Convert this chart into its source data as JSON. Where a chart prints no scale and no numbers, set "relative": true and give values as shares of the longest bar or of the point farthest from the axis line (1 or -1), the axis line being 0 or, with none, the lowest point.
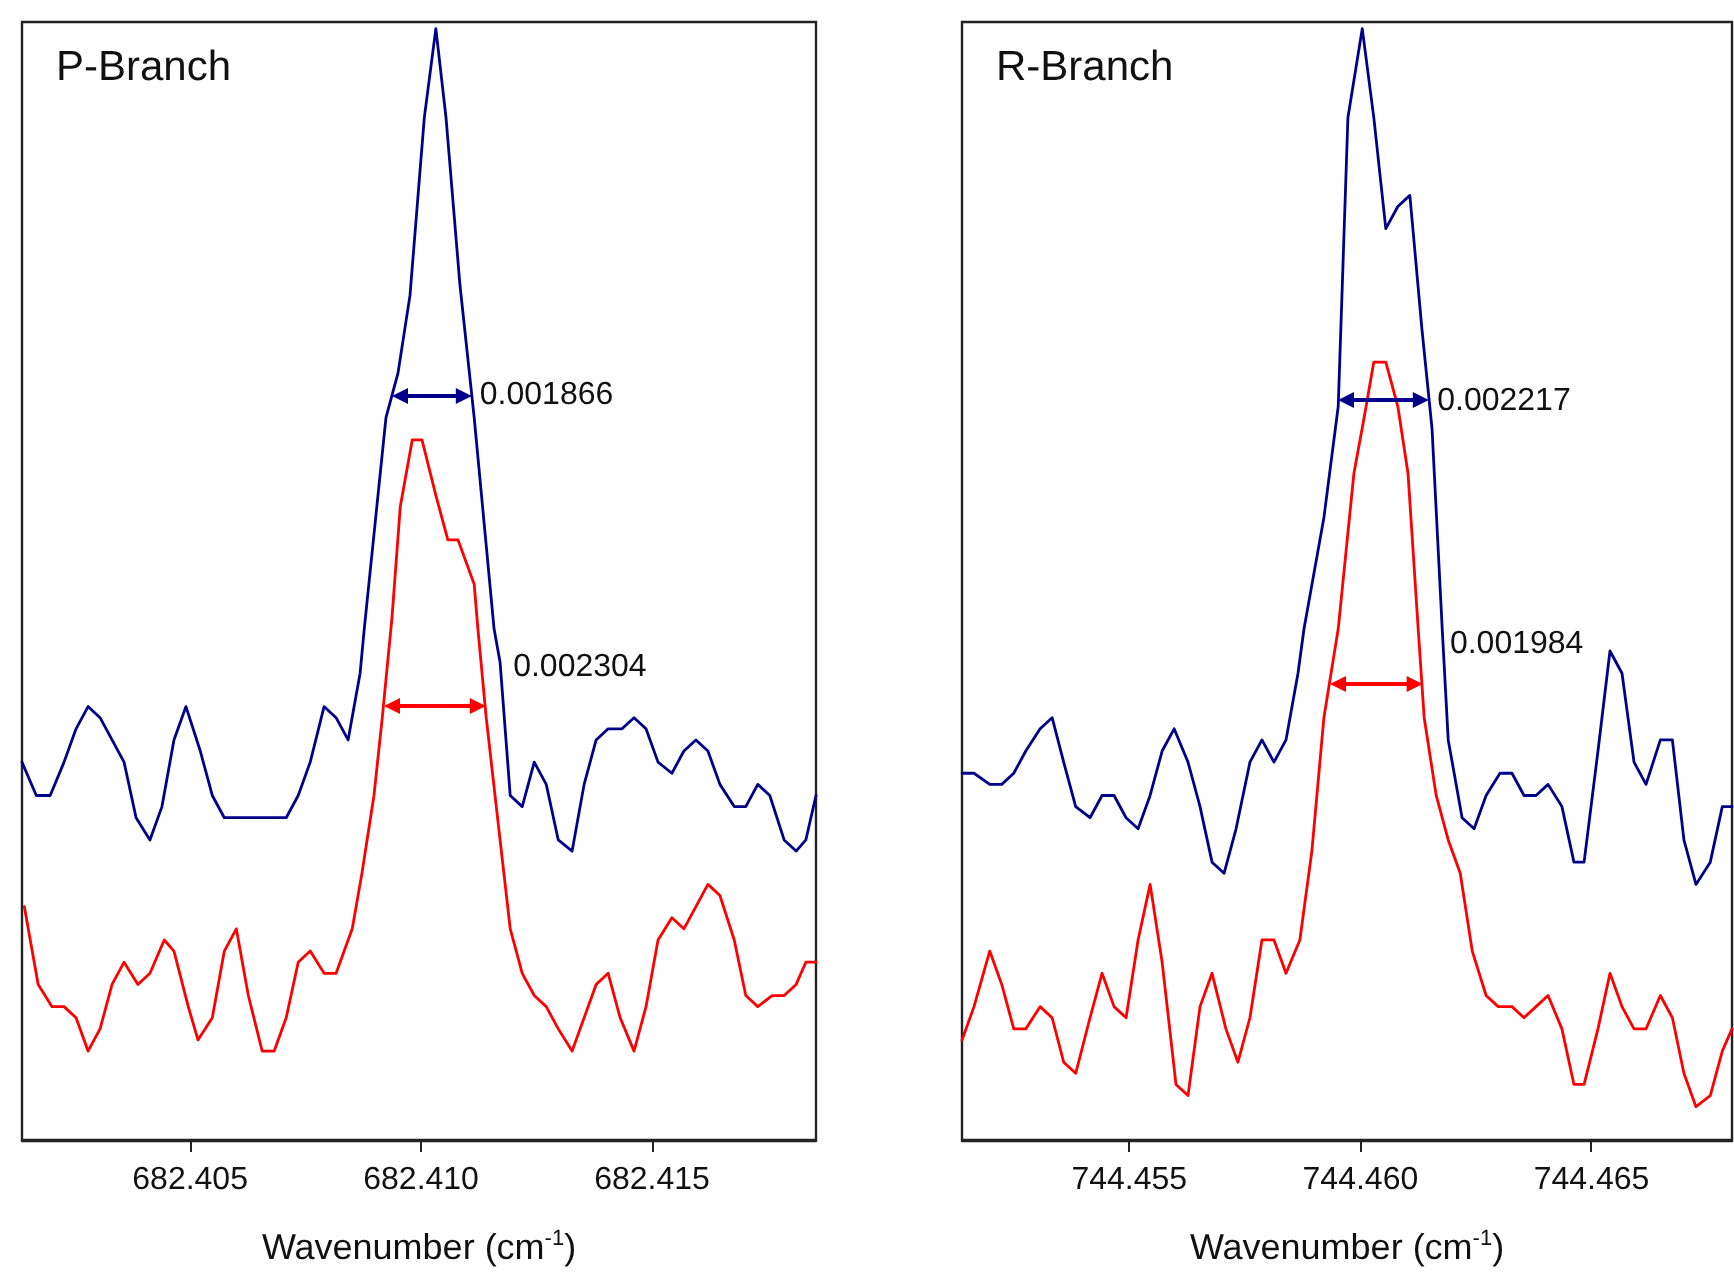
{
  "chart_data": [
    {
      "type": "line",
      "title": "P-Branch",
      "xlabel": "Wavenumber (cm$^{-1}$)",
      "relative": true,
      "marker": "none",
      "line_style": "solid",
      "xlim": [
        682.40136,
        682.41855
      ],
      "xticks": [
        682.405,
        {
          "value": 682.41,
          "label": "682.410"
        },
        682.415
      ],
      "series": [
        {
          "color": "#00008b",
          "x": [
            682.40136,
            682.40167,
            682.40197,
            682.40227,
            682.40253,
            682.40279,
            682.40305,
            682.40331,
            682.40357,
            682.40383,
            682.40413,
            682.40439,
            682.40465,
            682.40491,
            682.40522,
            682.40548,
            682.40574,
            682.40617,
            682.40673,
            682.40708,
            682.40734,
            682.4076,
            682.4079,
            682.40816,
            682.40842,
            682.40868,
            682.40877,
            682.40924,
            682.4095,
            682.40976,
            682.41007,
            682.41032,
            682.41054,
            682.41084,
            682.41115,
            682.41158,
            682.41171,
            682.41193,
            682.41219,
            682.41245,
            682.41271,
            682.41297,
            682.41327,
            682.41353,
            682.41379,
            682.41405,
            682.41435,
            682.41461,
            682.41487,
            682.41513,
            682.41543,
            682.41569,
            682.41595,
            682.41621,
            682.41647,
            682.41678,
            682.41703,
            682.41729,
            682.41755,
            682.41786,
            682.41812,
            682.41833,
            682.41855
          ],
          "values": [
            0.34,
            0.31,
            0.31,
            0.34,
            0.37,
            0.39,
            0.38,
            0.36,
            0.34,
            0.29,
            0.27,
            0.3,
            0.36,
            0.39,
            0.35,
            0.31,
            0.29,
            0.29,
            0.29,
            0.29,
            0.31,
            0.34,
            0.39,
            0.38,
            0.36,
            0.42,
            0.46,
            0.65,
            0.69,
            0.76,
            0.92,
            1.0,
            0.92,
            0.77,
            0.65,
            0.46,
            0.43,
            0.31,
            0.3,
            0.34,
            0.32,
            0.27,
            0.26,
            0.32,
            0.36,
            0.37,
            0.37,
            0.38,
            0.37,
            0.34,
            0.33,
            0.35,
            0.36,
            0.35,
            0.32,
            0.3,
            0.3,
            0.32,
            0.31,
            0.27,
            0.26,
            0.27,
            0.31
          ]
        },
        {
          "color": "#ff0000",
          "x": [
            682.40141,
            682.40171,
            682.40201,
            682.40227,
            682.40253,
            682.40279,
            682.40305,
            682.40331,
            682.40357,
            682.40387,
            682.40413,
            682.40444,
            682.40465,
            682.40496,
            682.40517,
            682.40548,
            682.40574,
            682.406,
            682.40626,
            682.40656,
            682.40682,
            682.40708,
            682.40734,
            682.4076,
            682.4079,
            682.40816,
            682.40851,
            682.40872,
            682.40898,
            682.40916,
            682.40937,
            682.40955,
            682.40981,
            682.41002,
            682.41032,
            682.41058,
            682.4108,
            682.41115,
            682.41123,
            682.41141,
            682.41171,
            682.41193,
            682.41219,
            682.41245,
            682.41271,
            682.41297,
            682.41327,
            682.41353,
            682.41379,
            682.41405,
            682.41431,
            682.41461,
            682.41487,
            682.41513,
            682.41543,
            682.41569,
            682.41595,
            682.41621,
            682.41647,
            682.41678,
            682.41703,
            682.41729,
            682.4176,
            682.41786,
            682.41812,
            682.41833,
            682.41855
          ],
          "values": [
            0.21,
            0.14,
            0.12,
            0.12,
            0.11,
            0.08,
            0.1,
            0.14,
            0.16,
            0.14,
            0.15,
            0.18,
            0.17,
            0.12,
            0.09,
            0.11,
            0.17,
            0.19,
            0.13,
            0.08,
            0.08,
            0.11,
            0.16,
            0.17,
            0.15,
            0.15,
            0.19,
            0.24,
            0.31,
            0.38,
            0.47,
            0.57,
            0.63,
            0.63,
            0.58,
            0.54,
            0.54,
            0.5,
            0.46,
            0.38,
            0.27,
            0.19,
            0.15,
            0.13,
            0.12,
            0.1,
            0.08,
            0.11,
            0.14,
            0.15,
            0.11,
            0.08,
            0.12,
            0.18,
            0.2,
            0.19,
            0.21,
            0.23,
            0.22,
            0.18,
            0.13,
            0.12,
            0.13,
            0.13,
            0.14,
            0.16,
            0.16
          ]
        }
      ],
      "annotations": [
        "0.001866",
        "0.002304"
      ]
    },
    {
      "type": "line",
      "title": "R-Branch",
      "xlabel": "Wavenumber (cm$^{-1}$)",
      "relative": true,
      "marker": "none",
      "line_style": "solid",
      "xlim": [
        744.45138,
        744.46804
      ],
      "xticks": [
        744.455,
        {
          "value": 744.46,
          "label": "744.460"
        },
        744.465
      ],
      "series": [
        {
          "color": "#00008b",
          "x": [
            744.45138,
            744.45164,
            744.45198,
            744.45224,
            744.4525,
            744.45276,
            744.45307,
            744.45333,
            744.45358,
            744.45384,
            744.45415,
            744.45441,
            744.45467,
            744.45493,
            744.45519,
            744.45545,
            744.45571,
            744.45597,
            744.45627,
            744.45653,
            744.45679,
            744.45705,
            744.45731,
            744.45761,
            744.45787,
            744.45813,
            744.45839,
            744.45865,
            744.45878,
            744.45921,
            744.45952,
            744.45973,
            744.46004,
            744.46029,
            744.46055,
            744.46081,
            744.46107,
            744.46133,
            744.46155,
            744.46177,
            744.4619,
            744.4622,
            744.46246,
            744.46272,
            744.46302,
            744.46328,
            744.46354,
            744.4638,
            744.46406,
            744.46436,
            744.46462,
            744.46484,
            744.46514,
            744.4654,
            744.46566,
            744.46592,
            744.46618,
            744.46649,
            744.46675,
            744.467,
            744.46726,
            744.46757,
            744.46783,
            744.46804
          ],
          "values": [
            0.33,
            0.33,
            0.32,
            0.32,
            0.33,
            0.35,
            0.37,
            0.38,
            0.34,
            0.3,
            0.29,
            0.31,
            0.31,
            0.29,
            0.28,
            0.31,
            0.35,
            0.37,
            0.34,
            0.3,
            0.25,
            0.24,
            0.28,
            0.34,
            0.36,
            0.34,
            0.36,
            0.42,
            0.46,
            0.56,
            0.66,
            0.92,
            1.0,
            0.92,
            0.82,
            0.84,
            0.85,
            0.73,
            0.64,
            0.46,
            0.36,
            0.29,
            0.28,
            0.31,
            0.33,
            0.33,
            0.31,
            0.31,
            0.32,
            0.3,
            0.25,
            0.25,
            0.35,
            0.44,
            0.42,
            0.34,
            0.32,
            0.36,
            0.36,
            0.27,
            0.23,
            0.25,
            0.3,
            0.3
          ]
        },
        {
          "color": "#ff0000",
          "x": [
            744.45138,
            744.45164,
            744.45198,
            744.45224,
            744.4525,
            744.45276,
            744.45307,
            744.45333,
            744.45358,
            744.45384,
            744.45415,
            744.45441,
            744.45467,
            744.45493,
            744.45519,
            744.45545,
            744.45571,
            744.45601,
            744.45627,
            744.45653,
            744.45679,
            744.45709,
            744.45735,
            744.45761,
            744.45787,
            744.45813,
            744.45839,
            744.45869,
            744.45895,
            744.45921,
            744.45952,
            744.45986,
            744.46008,
            744.46029,
            744.46055,
            744.46081,
            744.46103,
            744.46125,
            744.46138,
            744.46164,
            744.4619,
            744.46216,
            744.46242,
            744.46272,
            744.46298,
            744.46328,
            744.46354,
            744.4638,
            744.46406,
            744.46436,
            744.46462,
            744.46484,
            744.46514,
            744.4654,
            744.46566,
            744.46592,
            744.46618,
            744.46649,
            744.46675,
            744.467,
            744.46726,
            744.46757,
            744.46783,
            744.46804
          ],
          "values": [
            0.09,
            0.12,
            0.17,
            0.14,
            0.1,
            0.1,
            0.12,
            0.11,
            0.07,
            0.06,
            0.11,
            0.15,
            0.12,
            0.11,
            0.18,
            0.23,
            0.16,
            0.05,
            0.04,
            0.12,
            0.15,
            0.1,
            0.07,
            0.11,
            0.18,
            0.18,
            0.15,
            0.18,
            0.26,
            0.38,
            0.46,
            0.6,
            0.65,
            0.7,
            0.7,
            0.66,
            0.6,
            0.46,
            0.38,
            0.31,
            0.27,
            0.24,
            0.17,
            0.13,
            0.12,
            0.12,
            0.11,
            0.12,
            0.13,
            0.1,
            0.05,
            0.05,
            0.1,
            0.15,
            0.12,
            0.1,
            0.1,
            0.13,
            0.11,
            0.06,
            0.03,
            0.04,
            0.08,
            0.1
          ]
        }
      ],
      "annotations": [
        "0.002217",
        "0.001984"
      ]
    }
  ]
}
